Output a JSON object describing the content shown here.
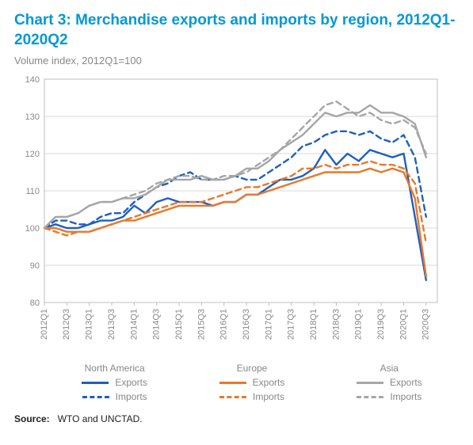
{
  "title": "Chart 3: Merchandise exports and imports by region, 2012Q1-2020Q2",
  "subtitle": "Volume index, 2012Q1=100",
  "source_label": "Source:",
  "source_text": "WTO and UNCTAD.",
  "chart": {
    "type": "line",
    "background_color": "#ffffff",
    "plot_border_color": "#bfbfbf",
    "gridline_color": "#d9d9d9",
    "axis_font_color": "#888888",
    "axis_fontsize": 11,
    "y": {
      "min": 80,
      "max": 140,
      "ticks": [
        80,
        90,
        100,
        110,
        120,
        130,
        140
      ]
    },
    "x": {
      "min": 0,
      "max": 35,
      "tick_labels": [
        "2012Q1",
        "2012Q3",
        "2013Q1",
        "2013Q3",
        "2014Q1",
        "2014Q3",
        "2015Q1",
        "2015Q3",
        "2016Q1",
        "2016Q3",
        "2017Q1",
        "2017Q3",
        "2018Q1",
        "2018Q3",
        "2019Q1",
        "2019Q3",
        "2020Q1",
        "2020Q3"
      ],
      "tick_positions": [
        0,
        2,
        4,
        6,
        8,
        10,
        12,
        14,
        16,
        18,
        20,
        22,
        24,
        26,
        28,
        30,
        32,
        34
      ]
    },
    "series": [
      {
        "id": "na_exports",
        "region": "North America",
        "kind": "Exports",
        "color": "#1f5fbf",
        "dash": "",
        "width": 2.4,
        "values": [
          100,
          101,
          100,
          100,
          101,
          102,
          102,
          103,
          106,
          104,
          107,
          108,
          107,
          107,
          107,
          106,
          107,
          107,
          109,
          109,
          111,
          113,
          113,
          114,
          116,
          121,
          117,
          120,
          118,
          121,
          120,
          119,
          120,
          103,
          86
        ]
      },
      {
        "id": "na_imports",
        "region": "North America",
        "kind": "Imports",
        "color": "#1f5fbf",
        "dash": "7,5",
        "width": 2.4,
        "values": [
          100,
          102,
          102,
          101,
          101,
          103,
          104,
          104,
          107,
          109,
          111,
          112,
          114,
          115,
          113,
          113,
          113,
          114,
          113,
          113,
          115,
          117,
          119,
          122,
          123,
          125,
          126,
          126,
          125,
          126,
          124,
          123,
          125,
          119,
          103
        ]
      },
      {
        "id": "eu_exports",
        "region": "Europe",
        "kind": "Exports",
        "color": "#e8782b",
        "dash": "",
        "width": 2.4,
        "values": [
          100,
          100,
          99,
          99,
          99,
          100,
          101,
          102,
          102,
          103,
          104,
          105,
          106,
          106,
          106,
          106,
          107,
          107,
          109,
          109,
          110,
          111,
          112,
          113,
          114,
          115,
          115,
          115,
          115,
          116,
          115,
          116,
          115,
          108,
          87
        ]
      },
      {
        "id": "eu_imports",
        "region": "Europe",
        "kind": "Imports",
        "color": "#e8782b",
        "dash": "7,5",
        "width": 2.4,
        "values": [
          100,
          99,
          98,
          99,
          99,
          100,
          101,
          102,
          103,
          104,
          105,
          106,
          107,
          107,
          107,
          108,
          109,
          110,
          111,
          111,
          112,
          113,
          114,
          116,
          116,
          117,
          116,
          117,
          117,
          118,
          117,
          117,
          116,
          112,
          96
        ]
      },
      {
        "id": "as_exports",
        "region": "Asia",
        "kind": "Exports",
        "color": "#a6a6a6",
        "dash": "",
        "width": 2.4,
        "values": [
          100,
          103,
          103,
          104,
          106,
          107,
          107,
          108,
          108,
          109,
          111,
          113,
          113,
          113,
          114,
          113,
          113,
          114,
          116,
          116,
          118,
          121,
          123,
          125,
          128,
          131,
          130,
          131,
          131,
          133,
          131,
          131,
          130,
          128,
          119
        ]
      },
      {
        "id": "as_imports",
        "region": "Asia",
        "kind": "Imports",
        "color": "#a6a6a6",
        "dash": "7,5",
        "width": 2.4,
        "values": [
          100,
          103,
          103,
          104,
          106,
          107,
          107,
          108,
          109,
          110,
          112,
          113,
          114,
          114,
          113,
          113,
          114,
          114,
          115,
          117,
          119,
          121,
          124,
          127,
          130,
          133,
          134,
          132,
          130,
          131,
          129,
          128,
          129,
          127,
          120
        ]
      }
    ]
  },
  "legend": {
    "headers": [
      "North America",
      "Europe",
      "Asia"
    ],
    "rows": [
      [
        {
          "color": "#1f5fbf",
          "dash": false,
          "label": "Exports"
        },
        {
          "color": "#e8782b",
          "dash": false,
          "label": "Exports"
        },
        {
          "color": "#a6a6a6",
          "dash": false,
          "label": "Exports"
        }
      ],
      [
        {
          "color": "#1f5fbf",
          "dash": true,
          "label": "Imports"
        },
        {
          "color": "#e8782b",
          "dash": true,
          "label": "Imports"
        },
        {
          "color": "#a6a6a6",
          "dash": true,
          "label": "Imports"
        }
      ]
    ]
  }
}
